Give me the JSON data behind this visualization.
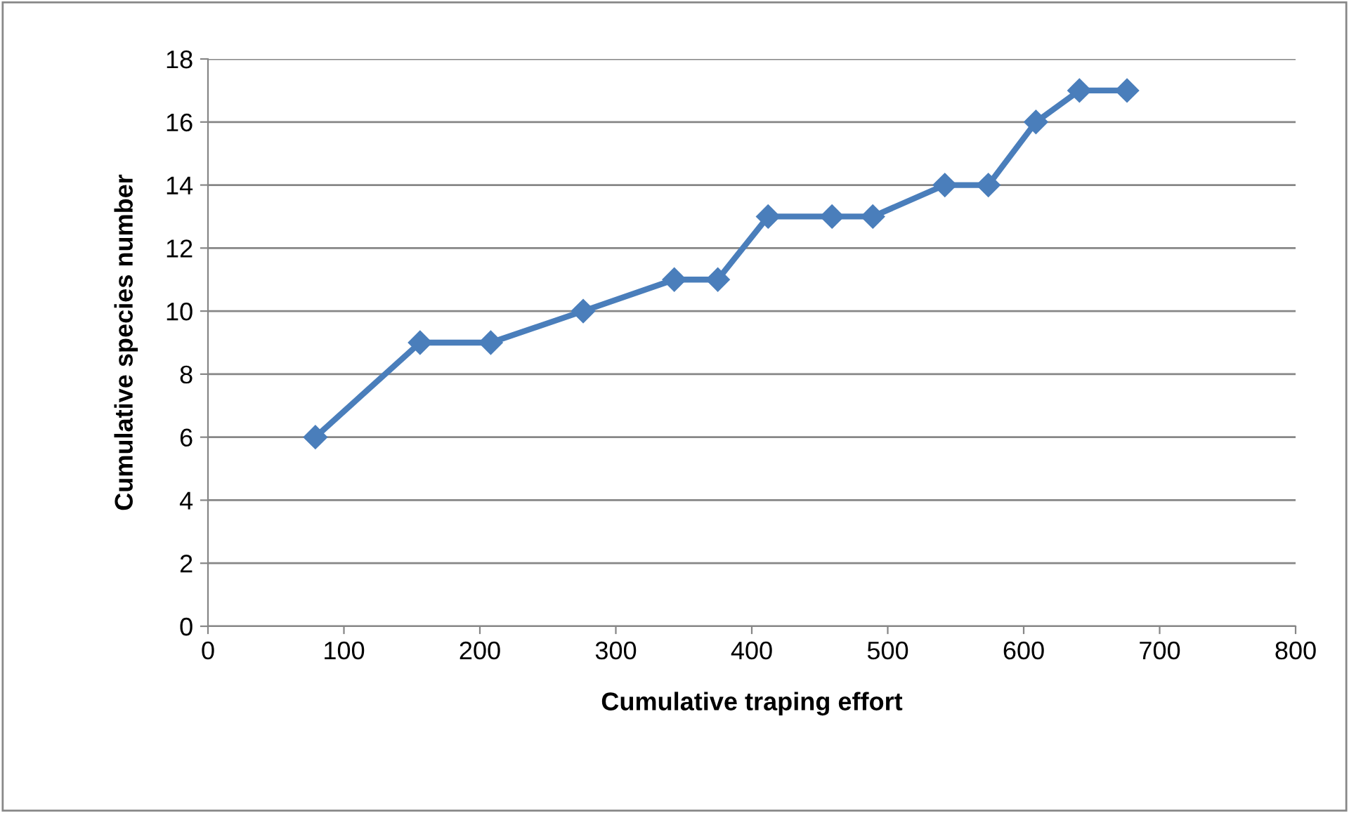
{
  "chart_data": {
    "type": "line",
    "xlabel": "Cumulative traping effort",
    "ylabel": "Cumulative species number",
    "x": [
      79,
      156,
      208,
      276,
      343,
      375,
      412,
      459,
      489,
      542,
      574,
      609,
      641,
      676
    ],
    "series": [
      {
        "color": "#4a7ebb",
        "values": [
          6,
          9,
          9,
          10,
          11,
          11,
          13,
          13,
          13,
          14,
          14,
          16,
          17,
          17
        ]
      }
    ],
    "xlim": [
      0,
      800
    ],
    "xticks": [
      0,
      100,
      200,
      300,
      400,
      500,
      600,
      700,
      800
    ],
    "ylim": [
      0,
      18
    ],
    "yticks": [
      0,
      2,
      4,
      6,
      8,
      10,
      12,
      14,
      16,
      18
    ],
    "grid": "y",
    "marker": "diamond",
    "line_style": "solid",
    "legend": false
  }
}
